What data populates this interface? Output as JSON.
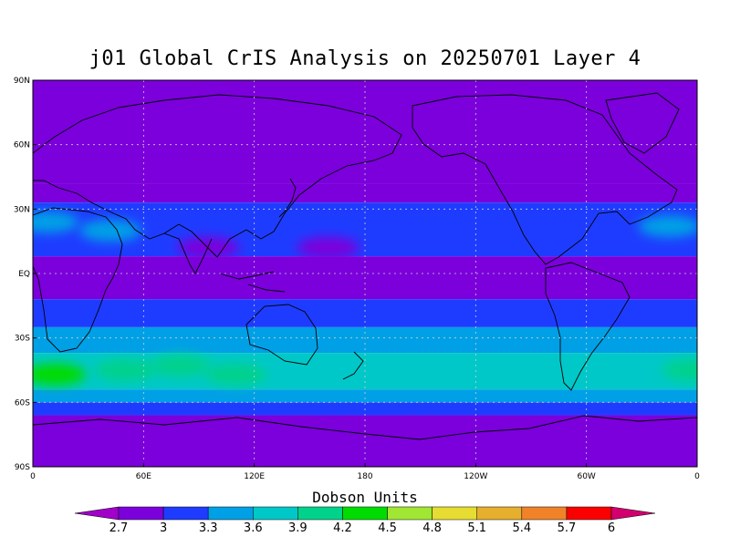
{
  "title": "j01 Global CrIS Analysis on 20250701 Layer 4",
  "map": {
    "projection": "equirectangular",
    "lon_range": [
      0,
      360
    ],
    "lat_range": [
      -90,
      90
    ],
    "gridlines": "dashed",
    "lat_ticks": [
      {
        "lat": 90,
        "label": "90N"
      },
      {
        "lat": 60,
        "label": "60N"
      },
      {
        "lat": 30,
        "label": "30N"
      },
      {
        "lat": 0,
        "label": "EQ"
      },
      {
        "lat": -30,
        "label": "30S"
      },
      {
        "lat": -60,
        "label": "60S"
      },
      {
        "lat": -90,
        "label": "90S"
      }
    ],
    "lon_ticks": [
      {
        "lon": 0,
        "label": "0"
      },
      {
        "lon": 60,
        "label": "60E"
      },
      {
        "lon": 120,
        "label": "120E"
      },
      {
        "lon": 180,
        "label": "180"
      },
      {
        "lon": 240,
        "label": "120W"
      },
      {
        "lon": 300,
        "label": "60W"
      },
      {
        "lon": 360,
        "label": "0"
      }
    ],
    "zonal_bands": [
      {
        "lat_top": 90,
        "lat_bottom": 42,
        "value": 2.8
      },
      {
        "lat_top": 42,
        "lat_bottom": 33,
        "value": 2.8
      },
      {
        "lat_top": 33,
        "lat_bottom": 8,
        "value": 3.15
      },
      {
        "lat_top": 8,
        "lat_bottom": -12,
        "value": 2.85
      },
      {
        "lat_top": -12,
        "lat_bottom": -25,
        "value": 3.15
      },
      {
        "lat_top": -25,
        "lat_bottom": -37,
        "value": 3.45
      },
      {
        "lat_top": -37,
        "lat_bottom": -54,
        "value": 3.75
      },
      {
        "lat_top": -54,
        "lat_bottom": -60,
        "value": 3.45
      },
      {
        "lat_top": -60,
        "lat_bottom": -66,
        "value": 3.15
      },
      {
        "lat_top": -66,
        "lat_bottom": -90,
        "value": 2.8
      }
    ],
    "hotspots": [
      {
        "lon": 12,
        "lat": -47,
        "value": 4.35
      },
      {
        "lon": 50,
        "lat": -45,
        "value": 4.05
      },
      {
        "lon": 80,
        "lat": -43,
        "value": 4.05
      },
      {
        "lon": 110,
        "lat": -47,
        "value": 4.05
      },
      {
        "lon": 358,
        "lat": -45,
        "value": 4.05
      },
      {
        "lon": 345,
        "lat": 22,
        "value": 3.45
      },
      {
        "lon": 8,
        "lat": 24,
        "value": 3.45
      },
      {
        "lon": 42,
        "lat": 20,
        "value": 3.45
      },
      {
        "lon": 95,
        "lat": 12,
        "value": 2.85
      },
      {
        "lon": 160,
        "lat": 12,
        "value": 2.85
      }
    ]
  },
  "colorbar": {
    "title": "Dobson Units",
    "levels": [
      2.7,
      3,
      3.3,
      3.6,
      3.9,
      4.2,
      4.5,
      4.8,
      5.1,
      5.4,
      5.7,
      6
    ],
    "tick_labels": [
      "2.7",
      "3",
      "3.3",
      "3.6",
      "3.9",
      "4.2",
      "4.5",
      "4.8",
      "5.1",
      "5.4",
      "5.7",
      "6"
    ],
    "colors": [
      "#a000c8",
      "#7b00dc",
      "#1e3cff",
      "#00a0e6",
      "#00c8c8",
      "#00d28c",
      "#00dc00",
      "#a0e632",
      "#e6dc32",
      "#e6af2d",
      "#f08228",
      "#fa0000",
      "#d2006e"
    ]
  },
  "colors": {
    "land_outline": "#000000",
    "gridline": "#cfcfcf"
  }
}
